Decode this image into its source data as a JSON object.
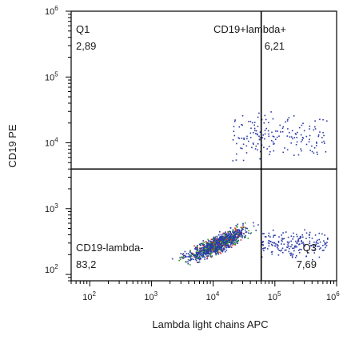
{
  "chart_data": {
    "type": "scatter",
    "xlabel": "Lambda light chains  APC",
    "ylabel": "CD19 PE",
    "x_scale": "log",
    "y_scale": "log",
    "xlim": [
      50,
      1000000
    ],
    "ylim": [
      80,
      1000000
    ],
    "x_ticks": [
      {
        "base": "10",
        "exp": "2"
      },
      {
        "base": "10",
        "exp": "3"
      },
      {
        "base": "10",
        "exp": "4"
      },
      {
        "base": "10",
        "exp": "5"
      },
      {
        "base": "10",
        "exp": "6"
      }
    ],
    "y_ticks": [
      {
        "base": "10",
        "exp": "2"
      },
      {
        "base": "10",
        "exp": "3"
      },
      {
        "base": "10",
        "exp": "4"
      },
      {
        "base": "10",
        "exp": "5"
      },
      {
        "base": "10",
        "exp": "6"
      }
    ],
    "gate": {
      "x": 60000,
      "y": 4000
    },
    "quadrants": [
      {
        "name": "Q1",
        "value": "2,89",
        "position": "top-left"
      },
      {
        "name": "CD19+lambda+",
        "value": "6,21",
        "position": "top-right"
      },
      {
        "name": "CD19-lambda-",
        "value": "83,2",
        "position": "bottom-left"
      },
      {
        "name": "Q3",
        "value": "7,69",
        "position": "bottom-right"
      }
    ],
    "populations": [
      {
        "x_range": [
          1500,
          60000
        ],
        "y_range": [
          110,
          800
        ],
        "density": "high"
      },
      {
        "x_range": [
          60000,
          700000
        ],
        "y_range": [
          110,
          800
        ],
        "density": "medium"
      },
      {
        "x_range": [
          20000,
          700000
        ],
        "y_range": [
          5000,
          35000
        ],
        "density": "low"
      }
    ],
    "colors": {
      "sparse": "#2a3aa8",
      "dense": "#2ca02c",
      "densest": "#d62728",
      "gate": "#000000"
    }
  }
}
